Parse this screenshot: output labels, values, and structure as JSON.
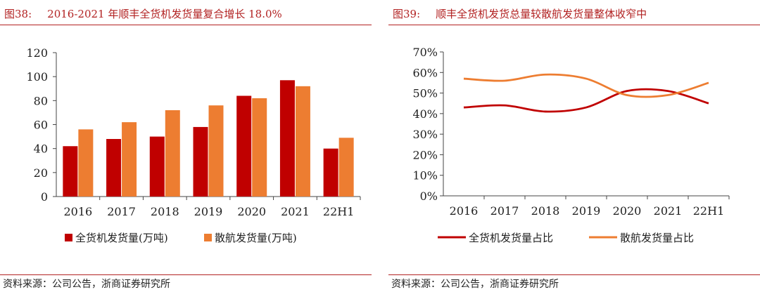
{
  "figures": [
    {
      "number": "图38:",
      "title": "2016-2021 年顺丰全货机发货量复合增长 18.0%",
      "source": "资料来源：公司公告，浙商证券研究所",
      "chart_data": {
        "type": "bar",
        "categories": [
          "2016",
          "2017",
          "2018",
          "2019",
          "2020",
          "2021",
          "22H1"
        ],
        "series": [
          {
            "name": "全货机发货量(万吨)",
            "color": "#c00000",
            "values": [
              42,
              48,
              50,
              58,
              84,
              97,
              40
            ]
          },
          {
            "name": "散航发货量(万吨)",
            "color": "#ed7d31",
            "values": [
              56,
              62,
              72,
              76,
              82,
              92,
              49
            ]
          }
        ],
        "yticks": [
          "0",
          "20",
          "40",
          "60",
          "80",
          "100",
          "120"
        ],
        "ylim": [
          0,
          120
        ],
        "grid": false,
        "legend_position": "bottom"
      }
    },
    {
      "number": "图39:",
      "title": "顺丰全货机发货总量较散航发货量整体收窄中",
      "source": "资料来源：公司公告，浙商证券研究所",
      "chart_data": {
        "type": "line",
        "categories": [
          "2016",
          "2017",
          "2018",
          "2019",
          "2020",
          "2021",
          "22H1"
        ],
        "series": [
          {
            "name": "全货机发货量占比",
            "color": "#c00000",
            "values": [
              43,
              44,
              41,
              43,
              51,
              51,
              45
            ]
          },
          {
            "name": "散航发货量占比",
            "color": "#ed7d31",
            "values": [
              57,
              56,
              59,
              57,
              49,
              49,
              55
            ]
          }
        ],
        "yticks": [
          "0%",
          "10%",
          "20%",
          "30%",
          "40%",
          "50%",
          "60%",
          "70%"
        ],
        "ylim": [
          0,
          70
        ],
        "grid": false,
        "smooth": true,
        "legend_position": "bottom"
      }
    }
  ]
}
